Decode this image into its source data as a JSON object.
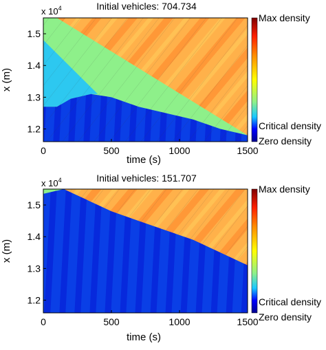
{
  "colors": {
    "zero": "#00008f",
    "low": "#0a3fe6",
    "critical": "#19c8ff",
    "mid": "#8ef08a",
    "orange": "#ffb94a",
    "high": "#ff8a2a",
    "max": "#800000"
  },
  "colorbar": {
    "labels": {
      "max": "Max density",
      "critical": "Critical density",
      "zero": "Zero density"
    }
  },
  "chart_data": [
    {
      "type": "heatmap",
      "title": "Initial vehicles: 704.734",
      "xlabel": "time (s)",
      "ylabel": "x (m)",
      "y_multiplier": "x 10",
      "y_multiplier_exp": "4",
      "xlim": [
        0,
        1500
      ],
      "ylim": [
        11600,
        15500
      ],
      "x_ticks": [
        0,
        500,
        1000,
        1500
      ],
      "x_tick_labels": [
        "0",
        "500",
        "1000",
        "1500"
      ],
      "y_ticks": [
        12000,
        13000,
        14000,
        15000
      ],
      "y_tick_labels": [
        "1.2",
        "1.3",
        "1.4",
        "1.5"
      ],
      "congestion_boundary": [
        [
          0,
          12700
        ],
        [
          100,
          12700
        ],
        [
          200,
          12950
        ],
        [
          350,
          13100
        ],
        [
          500,
          13000
        ],
        [
          700,
          12700
        ],
        [
          900,
          12500
        ],
        [
          1100,
          12300
        ],
        [
          1300,
          12000
        ],
        [
          1500,
          11800
        ]
      ],
      "initial_queue_front": [
        [
          0,
          14800
        ],
        [
          400,
          13100
        ]
      ],
      "free_flow_front": [
        [
          0,
          15500
        ],
        [
          100,
          15500
        ],
        [
          1500,
          11800
        ]
      ]
    },
    {
      "type": "heatmap",
      "title": "Initial vehicles: 151.707",
      "xlabel": "time (s)",
      "ylabel": "x (m)",
      "y_multiplier": "x 10",
      "y_multiplier_exp": "4",
      "xlim": [
        0,
        1500
      ],
      "ylim": [
        11600,
        15500
      ],
      "x_ticks": [
        0,
        500,
        1000,
        1500
      ],
      "x_tick_labels": [
        "0",
        "500",
        "1000",
        "1500"
      ],
      "y_ticks": [
        12000,
        13000,
        14000,
        15000
      ],
      "y_tick_labels": [
        "1.2",
        "1.3",
        "1.4",
        "1.5"
      ],
      "congestion_boundary": [
        [
          0,
          15350
        ],
        [
          150,
          15500
        ],
        [
          300,
          15200
        ],
        [
          500,
          14800
        ],
        [
          700,
          14500
        ],
        [
          900,
          14200
        ],
        [
          1100,
          13900
        ],
        [
          1300,
          13500
        ],
        [
          1500,
          13100
        ]
      ],
      "initial_queue_front": [],
      "free_flow_front": [
        [
          150,
          15500
        ],
        [
          1500,
          12700
        ]
      ]
    }
  ]
}
